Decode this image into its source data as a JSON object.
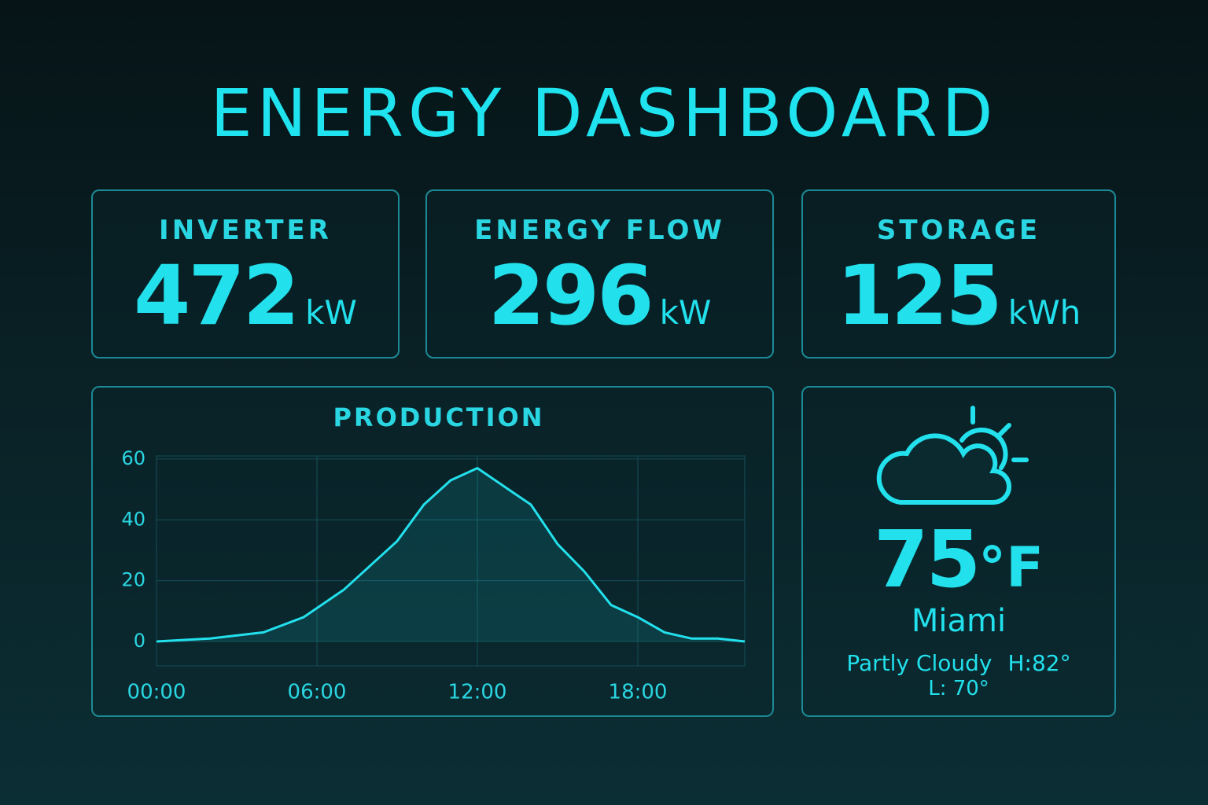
{
  "title": "ENERGY DASHBOARD",
  "cards": [
    {
      "label": "INVERTER",
      "value": 472,
      "unit": "kW"
    },
    {
      "label": "ENERGY FLOW",
      "value": 296,
      "unit": "kW"
    },
    {
      "label": "STORAGE",
      "value": 125,
      "unit": "kWh"
    }
  ],
  "chart_data": {
    "type": "line",
    "title": "PRODUCTION",
    "color": "#22e0ec",
    "grid": true,
    "x": [
      0,
      2,
      4,
      5.5,
      7,
      8,
      9,
      10,
      11,
      12,
      13,
      14,
      15,
      16,
      17,
      18,
      19,
      20,
      21,
      22
    ],
    "values": [
      0,
      1,
      3,
      8,
      17,
      25,
      33,
      45,
      53,
      57,
      51,
      45,
      32,
      23,
      12,
      8,
      3,
      1,
      1,
      0
    ],
    "xlim": [
      0,
      22
    ],
    "xticks": [
      {
        "value": 0,
        "label": "00:00"
      },
      {
        "value": 6,
        "label": "06:00"
      },
      {
        "value": 12,
        "label": "12:00"
      },
      {
        "value": 18,
        "label": "18:00"
      }
    ],
    "ylim": [
      -8,
      61
    ],
    "yticks": [
      0,
      20,
      40,
      60
    ]
  },
  "weather": {
    "temperature": 75,
    "temperature_unit": "°F",
    "city": "Miami",
    "condition": "Partly Cloudy",
    "high": "H:82°",
    "low": "L: 70°"
  }
}
